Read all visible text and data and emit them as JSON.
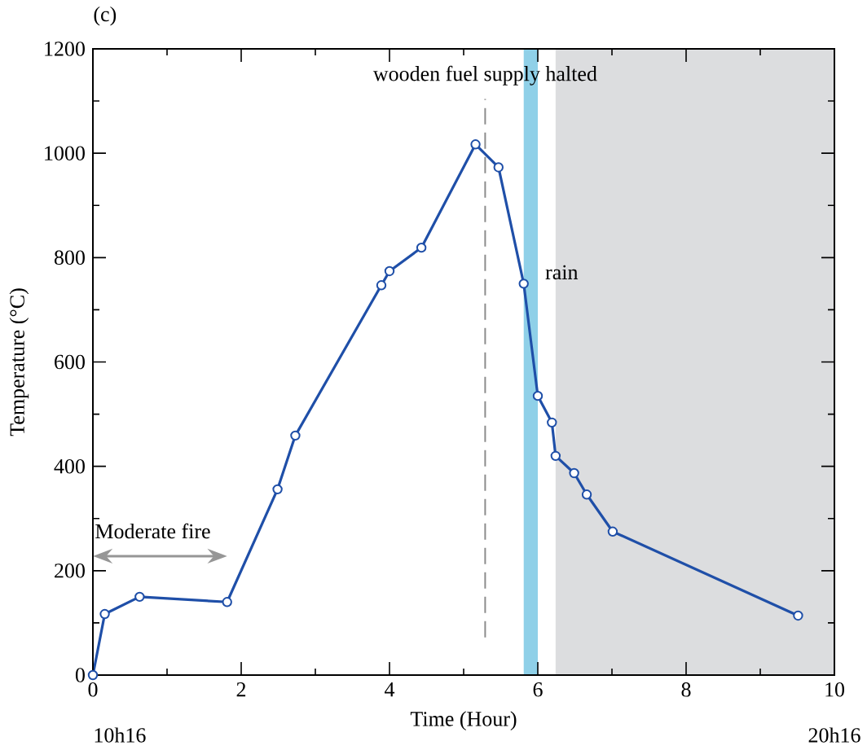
{
  "chart_data": {
    "type": "line",
    "title": "(c)",
    "xlabel": "Time (Hour)",
    "ylabel": "Temperature (°C)",
    "x": [
      0,
      0.16,
      0.63,
      1.81,
      2.49,
      2.73,
      3.89,
      4.0,
      4.43,
      5.16,
      5.47,
      5.81,
      6.0,
      6.19,
      6.24,
      6.49,
      6.66,
      7.01,
      9.51
    ],
    "series": [
      {
        "color": "#1f4fa8",
        "values": [
          0,
          117,
          150,
          140,
          356,
          459,
          747,
          774,
          819,
          1017,
          973,
          750,
          535,
          484,
          420,
          387,
          346,
          275,
          114
        ]
      }
    ],
    "marker": "circle",
    "line_style": "solid",
    "xlim": [
      0,
      10
    ],
    "ylim": [
      0,
      1200
    ],
    "xticks": [
      0,
      2,
      4,
      6,
      8,
      10
    ],
    "yticks": [
      0,
      200,
      400,
      600,
      800,
      1000,
      1200
    ],
    "ref_lines": [
      {
        "axis": "x",
        "value": 5.29,
        "label": "wooden fuel supply halted",
        "color": "#8c8c8c",
        "line_style": "dashed"
      }
    ],
    "bands": [
      {
        "axis": "x",
        "from": 5.81,
        "to": 6.0,
        "label": "rain",
        "color": "#8fd0e8"
      },
      {
        "axis": "x",
        "from": 6.24,
        "to": 10,
        "color": "#dcdddf"
      }
    ],
    "annotations": [
      "Moderate fire",
      "10h16",
      "20h16"
    ]
  }
}
